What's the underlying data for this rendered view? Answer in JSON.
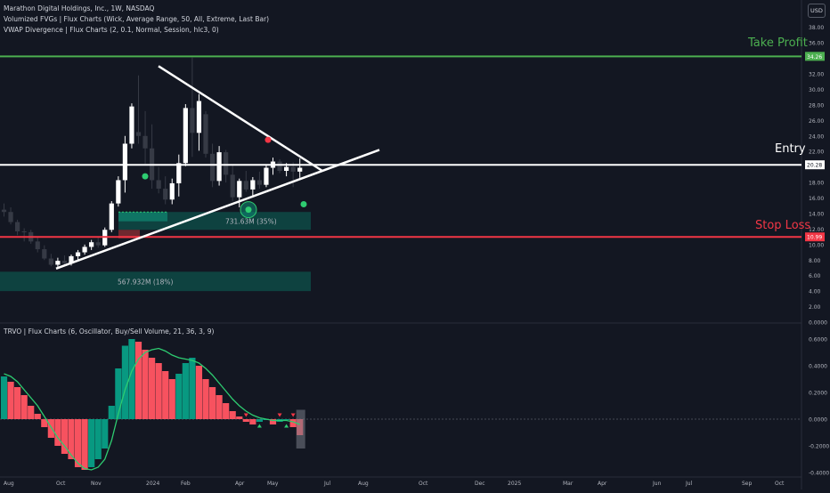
{
  "header": {
    "symbol_line": "Marathon Digital Holdings, Inc., 1W, NASDAQ",
    "indicator_1": "Volumized FVGs | Flux Charts (Wick, Average Range, 50, All, Extreme, Last Bar)",
    "indicator_2": "VWAP Divergence | Flux Charts (2, 0.1, Normal, Session, hlc3, 0)",
    "currency": "USD"
  },
  "oscillator": {
    "title": "TRVO | Flux Charts (6, Oscillator, Buy/Sell Volume, 21, 36, 3, 9)"
  },
  "levels": {
    "take_profit": {
      "label": "Take Profit",
      "price": "34.26",
      "value": 34.26,
      "color": "#4caf50"
    },
    "entry": {
      "label": "Entry",
      "price": "20.28",
      "value": 20.28,
      "color": "#ffffff"
    },
    "stop_loss": {
      "label": "Stop Loss",
      "price": "10.99",
      "value": 10.99,
      "color": "#f23645"
    }
  },
  "zones": {
    "upper_label": "731.63M (35%)",
    "lower_label": "567.932M (18%)"
  },
  "colors": {
    "background": "#131722",
    "up": "#ffffff",
    "down": "#363a45",
    "osc_green": "#089981",
    "osc_red": "#f7525f",
    "signal": "#2ecc71"
  },
  "chart_data": {
    "type": "candlestick",
    "title": "Marathon Digital Holdings, Inc., 1W, NASDAQ",
    "price_axis": {
      "ticks": [
        "38.00",
        "36.00",
        "34.00",
        "32.00",
        "30.00",
        "28.00",
        "26.00",
        "24.00",
        "22.00",
        "20.00",
        "18.00",
        "16.00",
        "14.00",
        "12.00",
        "10.00",
        "8.00",
        "6.00",
        "4.00",
        "2.00",
        "0.0000"
      ],
      "ylim": [
        0,
        39
      ]
    },
    "osc_axis": {
      "ticks": [
        "0.6000",
        "0.4000",
        "0.2000",
        "0.0000",
        "-0.2000",
        "-0.4000"
      ],
      "ylim": [
        -0.42,
        0.66
      ]
    },
    "time_axis": {
      "labels": [
        "Aug",
        "Oct",
        "Nov",
        "2024",
        "Feb",
        "Apr",
        "May",
        "Jul",
        "Aug",
        "Oct",
        "Dec",
        "2025",
        "Mar",
        "Apr",
        "Jun",
        "Jul",
        "Sep",
        "Oct"
      ]
    },
    "candles": [
      {
        "o": 14.5,
        "h": 15.3,
        "l": 13.6,
        "c": 14.2
      },
      {
        "o": 14.2,
        "h": 14.8,
        "l": 12.6,
        "c": 12.9
      },
      {
        "o": 12.9,
        "h": 13.2,
        "l": 11.2,
        "c": 11.7
      },
      {
        "o": 11.7,
        "h": 12.1,
        "l": 10.4,
        "c": 11.6
      },
      {
        "o": 11.6,
        "h": 11.9,
        "l": 10.1,
        "c": 10.4
      },
      {
        "o": 10.4,
        "h": 10.9,
        "l": 9.0,
        "c": 9.4
      },
      {
        "o": 9.4,
        "h": 9.9,
        "l": 8.0,
        "c": 8.2
      },
      {
        "o": 8.2,
        "h": 8.8,
        "l": 7.2,
        "c": 7.4
      },
      {
        "o": 7.4,
        "h": 8.3,
        "l": 7.0,
        "c": 7.9
      },
      {
        "o": 7.9,
        "h": 8.6,
        "l": 7.3,
        "c": 7.6
      },
      {
        "o": 7.6,
        "h": 8.7,
        "l": 7.3,
        "c": 8.5
      },
      {
        "o": 8.5,
        "h": 9.3,
        "l": 8.0,
        "c": 9.0
      },
      {
        "o": 9.0,
        "h": 10.0,
        "l": 8.7,
        "c": 9.7
      },
      {
        "o": 9.7,
        "h": 10.6,
        "l": 9.3,
        "c": 10.3
      },
      {
        "o": 10.3,
        "h": 11.0,
        "l": 9.6,
        "c": 9.9
      },
      {
        "o": 9.9,
        "h": 12.2,
        "l": 9.7,
        "c": 11.9
      },
      {
        "o": 11.9,
        "h": 15.6,
        "l": 11.6,
        "c": 15.3
      },
      {
        "o": 15.3,
        "h": 18.8,
        "l": 14.9,
        "c": 18.3
      },
      {
        "o": 18.3,
        "h": 24.0,
        "l": 16.7,
        "c": 23.0
      },
      {
        "o": 23.0,
        "h": 28.2,
        "l": 22.4,
        "c": 27.8
      },
      {
        "o": 24.5,
        "h": 31.8,
        "l": 23.0,
        "c": 24.0
      },
      {
        "o": 24.0,
        "h": 27.2,
        "l": 20.4,
        "c": 22.4
      },
      {
        "o": 22.4,
        "h": 25.5,
        "l": 17.2,
        "c": 18.3
      },
      {
        "o": 18.3,
        "h": 20.0,
        "l": 16.6,
        "c": 17.2
      },
      {
        "o": 17.2,
        "h": 18.8,
        "l": 15.2,
        "c": 15.8
      },
      {
        "o": 15.8,
        "h": 18.5,
        "l": 15.2,
        "c": 17.9
      },
      {
        "o": 17.9,
        "h": 21.6,
        "l": 16.2,
        "c": 20.5
      },
      {
        "o": 20.5,
        "h": 28.1,
        "l": 20.1,
        "c": 27.6
      },
      {
        "o": 27.6,
        "h": 34.1,
        "l": 21.3,
        "c": 24.4
      },
      {
        "o": 24.4,
        "h": 29.4,
        "l": 22.1,
        "c": 28.5
      },
      {
        "o": 26.8,
        "h": 27.2,
        "l": 21.2,
        "c": 21.7
      },
      {
        "o": 21.7,
        "h": 23.0,
        "l": 17.4,
        "c": 18.2
      },
      {
        "o": 18.2,
        "h": 22.7,
        "l": 17.6,
        "c": 21.9
      },
      {
        "o": 21.9,
        "h": 22.2,
        "l": 18.0,
        "c": 19.0
      },
      {
        "o": 19.0,
        "h": 20.3,
        "l": 15.6,
        "c": 16.1
      },
      {
        "o": 16.1,
        "h": 18.5,
        "l": 14.8,
        "c": 18.2
      },
      {
        "o": 18.2,
        "h": 19.5,
        "l": 16.8,
        "c": 17.1
      },
      {
        "o": 17.1,
        "h": 18.7,
        "l": 16.2,
        "c": 18.3
      },
      {
        "o": 18.3,
        "h": 19.4,
        "l": 17.2,
        "c": 17.7
      },
      {
        "o": 17.7,
        "h": 20.2,
        "l": 17.4,
        "c": 19.9
      },
      {
        "o": 19.9,
        "h": 21.2,
        "l": 19.0,
        "c": 20.7
      },
      {
        "o": 20.7,
        "h": 21.0,
        "l": 19.2,
        "c": 19.5
      },
      {
        "o": 19.5,
        "h": 20.5,
        "l": 18.8,
        "c": 20.0
      },
      {
        "o": 20.0,
        "h": 20.6,
        "l": 17.4,
        "c": 19.4
      },
      {
        "o": 19.4,
        "h": 21.1,
        "l": 18.6,
        "c": 19.9
      }
    ],
    "osc_bars": [
      0.32,
      0.28,
      0.24,
      0.18,
      0.1,
      0.04,
      -0.06,
      -0.14,
      -0.2,
      -0.26,
      -0.3,
      -0.36,
      -0.38,
      -0.36,
      -0.3,
      -0.22,
      0.1,
      0.38,
      0.55,
      0.6,
      0.58,
      0.52,
      0.46,
      0.42,
      0.36,
      0.3,
      0.34,
      0.42,
      0.46,
      0.4,
      0.3,
      0.24,
      0.18,
      0.12,
      0.06,
      0.02,
      -0.02,
      -0.04,
      -0.02,
      0.0,
      -0.04,
      -0.02,
      0.0,
      -0.06,
      -0.12
    ],
    "osc_signal": [
      0.34,
      0.32,
      0.28,
      0.22,
      0.16,
      0.1,
      0.02,
      -0.06,
      -0.14,
      -0.2,
      -0.27,
      -0.33,
      -0.37,
      -0.38,
      -0.36,
      -0.3,
      -0.16,
      0.04,
      0.22,
      0.36,
      0.45,
      0.5,
      0.52,
      0.53,
      0.51,
      0.48,
      0.46,
      0.45,
      0.44,
      0.42,
      0.38,
      0.33,
      0.27,
      0.21,
      0.15,
      0.1,
      0.06,
      0.03,
      0.01,
      0.0,
      -0.01,
      -0.01,
      -0.01,
      -0.02,
      -0.04
    ]
  }
}
